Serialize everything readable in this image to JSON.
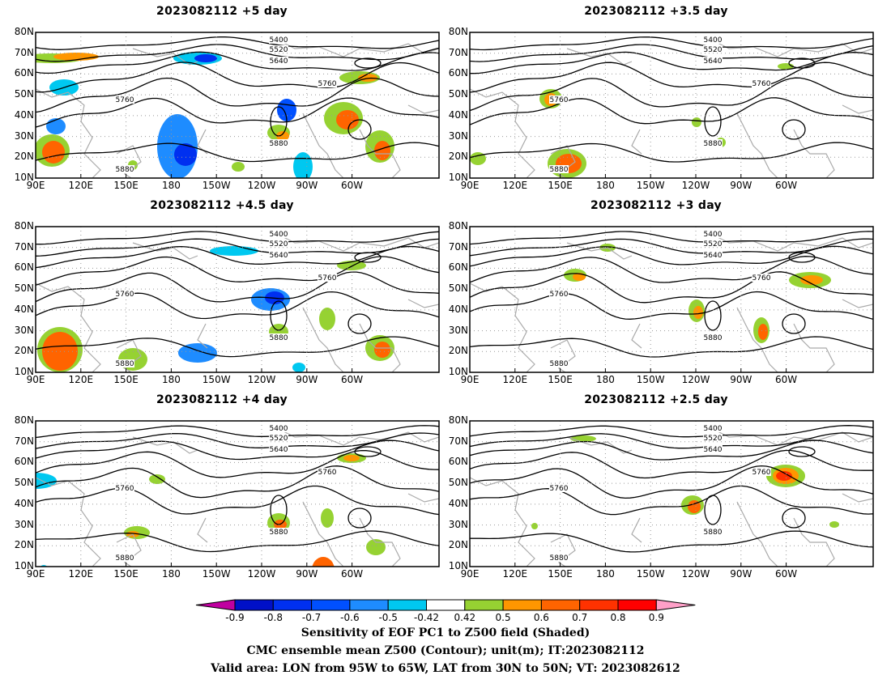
{
  "panels": [
    {
      "title": "2023082112 +5 day"
    },
    {
      "title": "2023082112 +3.5 day"
    },
    {
      "title": "2023082112 +4.5 day"
    },
    {
      "title": "2023082112 +3 day"
    },
    {
      "title": "2023082112 +4 day"
    },
    {
      "title": "2023082112 +2.5 day"
    }
  ],
  "lat_labels": [
    "80N",
    "70N",
    "60N",
    "50N",
    "40N",
    "30N",
    "20N",
    "10N"
  ],
  "lon_labels": [
    "90E",
    "120E",
    "150E",
    "180",
    "150W",
    "120W",
    "90W",
    "60W"
  ],
  "contour_labels": [
    "5400",
    "5520",
    "5640",
    "5760",
    "5880"
  ],
  "colorbar": {
    "labels": [
      "-0.9",
      "-0.8",
      "-0.7",
      "-0.6",
      "-0.5",
      "-0.42",
      "0.42",
      "0.5",
      "0.6",
      "0.7",
      "0.8",
      "0.9"
    ],
    "colors": [
      "#c000a0",
      "#0010c8",
      "#0030f0",
      "#0050ff",
      "#1e8cff",
      "#00c8f0",
      "#ffffff",
      "#96d232",
      "#ff9600",
      "#ff6400",
      "#ff3200",
      "#ff0000",
      "#ffa0c8"
    ]
  },
  "footer": {
    "line1": "Sensitivity of EOF PC1 to Z500 field (Shaded)",
    "line2": "CMC ensemble mean Z500 (Contour); unit(m); IT:2023082112",
    "line3": "Valid area: LON from 95W to 65W, LAT from 30N to 50N; VT: 2023082612"
  },
  "colors": {
    "contour": "#000000",
    "coast": "#aaaaaa",
    "grid": "#999999"
  }
}
